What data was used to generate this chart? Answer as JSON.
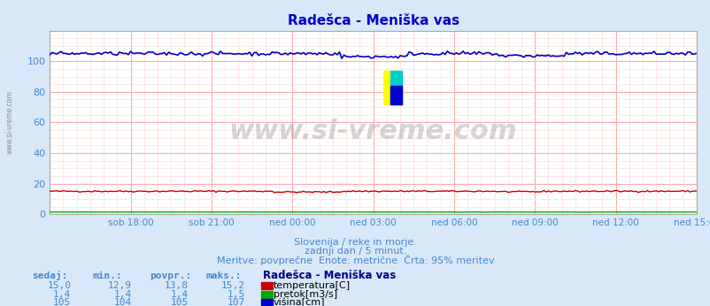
{
  "title": "Radešca - Meniška vas",
  "bg_color": "#d8e8f8",
  "plot_bg_color": "#ffffff",
  "grid_color_major": "#ffaaaa",
  "grid_color_minor": "#ffdddd",
  "xlim": [
    0,
    288
  ],
  "ylim": [
    0,
    120
  ],
  "yticks": [
    0,
    20,
    40,
    60,
    80,
    100
  ],
  "xtick_labels": [
    "sob 18:00",
    "sob 21:00",
    "ned 00:00",
    "ned 03:00",
    "ned 06:00",
    "ned 09:00",
    "ned 12:00",
    "ned 15:00"
  ],
  "xtick_positions": [
    36,
    72,
    108,
    144,
    180,
    216,
    252,
    288
  ],
  "temp_color": "#cc0000",
  "pretok_color": "#00aa00",
  "visina_color": "#0000cc",
  "subtitle1": "Slovenija / reke in morje.",
  "subtitle2": "zadnji dan / 5 minut.",
  "subtitle3": "Meritve: povprečne  Enote: metrične  Črta: 95% meritev",
  "label_color": "#4488cc",
  "watermark": "www.si-vreme.com",
  "n_points": 289
}
